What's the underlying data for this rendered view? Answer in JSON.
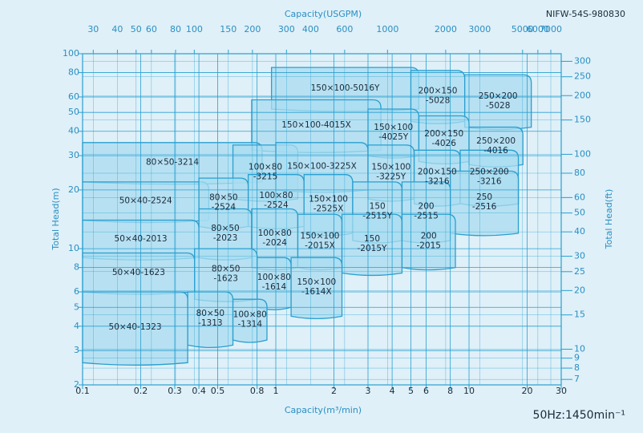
{
  "chart_data": {
    "type": "coverage",
    "title": "NIFW-54S-980830",
    "note": "50Hz:1450min⁻¹",
    "xlabel": "Capacity(m³/min)",
    "x2label": "Capacity(USGPM)",
    "ylabel": "Total Head(m)",
    "y2label": "Total Head(ft)",
    "xscale": "log",
    "yscale": "log",
    "grid": true,
    "color": "#aadcf0",
    "edge_color": "#2a9fd0",
    "xlim": [
      0.1,
      30
    ],
    "ylim": [
      2,
      100
    ],
    "x2lim": [
      26.417,
      7925
    ],
    "y2lim": [
      6.562,
      328.1
    ],
    "xticks": [
      0.1,
      0.2,
      0.3,
      0.4,
      0.5,
      0.8,
      1,
      2,
      3,
      4,
      5,
      6,
      8,
      10,
      20,
      30
    ],
    "x2ticks": [
      30,
      40,
      50,
      60,
      80,
      100,
      150,
      200,
      300,
      400,
      600,
      1000,
      2000,
      3000,
      5000,
      6000,
      7000
    ],
    "yticks": [
      2,
      3,
      4,
      5,
      6,
      8,
      10,
      20,
      30,
      40,
      50,
      60,
      80,
      100
    ],
    "y2ticks": [
      7,
      8,
      9,
      10,
      15,
      20,
      25,
      30,
      40,
      50,
      60,
      80,
      100,
      150,
      200,
      250,
      300
    ],
    "regions": [
      {
        "lines": [
          "150×100-5016Y"
        ],
        "q": [
          0.95,
          5.5
        ],
        "h": [
          52,
          85
        ]
      },
      {
        "lines": [
          "200×150",
          "-5028"
        ],
        "q": [
          5,
          9.5
        ],
        "h": [
          45,
          82
        ]
      },
      {
        "lines": [
          "250×200",
          "-5028"
        ],
        "q": [
          9.5,
          21
        ],
        "h": [
          42,
          78
        ]
      },
      {
        "lines": [
          "150×100-4015X"
        ],
        "q": [
          0.75,
          3.5
        ],
        "h": [
          32,
          58
        ]
      },
      {
        "lines": [
          "150×100",
          "-4025Y"
        ],
        "q": [
          3,
          5.5
        ],
        "h": [
          30,
          52
        ]
      },
      {
        "lines": [
          "200×150",
          "-4026"
        ],
        "q": [
          5.5,
          10
        ],
        "h": [
          28,
          48
        ]
      },
      {
        "lines": [
          "250×200",
          "-4016"
        ],
        "q": [
          10,
          19
        ],
        "h": [
          27,
          42
        ]
      },
      {
        "lines": [
          "80×50-3214"
        ],
        "q": [
          0.1,
          0.85
        ],
        "h": [
          22,
          35
        ]
      },
      {
        "lines": [
          "100×80",
          "-3215"
        ],
        "q": [
          0.6,
          1.3
        ],
        "h": [
          18,
          34
        ]
      },
      {
        "lines": [
          "150×100-3225X"
        ],
        "q": [
          1,
          3
        ],
        "h": [
          20,
          35
        ]
      },
      {
        "lines": [
          "150×100",
          "-3225Y"
        ],
        "q": [
          3,
          5.2
        ],
        "h": [
          18,
          34
        ]
      },
      {
        "lines": [
          "200×150",
          "-3216"
        ],
        "q": [
          5.2,
          9
        ],
        "h": [
          17,
          32
        ]
      },
      {
        "lines": [
          "250×200",
          "-3216"
        ],
        "q": [
          9,
          18
        ],
        "h": [
          17,
          32
        ]
      },
      {
        "lines": [
          "50×40-2524"
        ],
        "q": [
          0.1,
          0.45
        ],
        "h": [
          14,
          22
        ]
      },
      {
        "lines": [
          "80×50",
          "-2524"
        ],
        "q": [
          0.4,
          0.72
        ],
        "h": [
          13,
          23
        ]
      },
      {
        "lines": [
          "100×80",
          "-2524"
        ],
        "q": [
          0.72,
          1.4
        ],
        "h": [
          13,
          24
        ]
      },
      {
        "lines": [
          "150×100",
          "-2525X"
        ],
        "q": [
          1.4,
          2.5
        ],
        "h": [
          12,
          24
        ]
      },
      {
        "lines": [
          "150",
          "-2515Y"
        ],
        "q": [
          2.5,
          4.5
        ],
        "h": [
          11,
          22
        ]
      },
      {
        "lines": [
          "200",
          "-2515"
        ],
        "q": [
          4.5,
          8
        ],
        "h": [
          11,
          22
        ]
      },
      {
        "lines": [
          "250",
          "-2516"
        ],
        "q": [
          8,
          18
        ],
        "h": [
          12,
          25
        ]
      },
      {
        "lines": [
          "50×40-2013"
        ],
        "q": [
          0.1,
          0.4
        ],
        "h": [
          9,
          14
        ]
      },
      {
        "lines": [
          "80×50",
          "-2023"
        ],
        "q": [
          0.4,
          0.75
        ],
        "h": [
          9,
          16
        ]
      },
      {
        "lines": [
          "100×80",
          "-2024"
        ],
        "q": [
          0.75,
          1.3
        ],
        "h": [
          8,
          16
        ]
      },
      {
        "lines": [
          "150×100",
          "-2015X"
        ],
        "q": [
          1.3,
          2.2
        ],
        "h": [
          8,
          15
        ]
      },
      {
        "lines": [
          "150",
          "-2015Y"
        ],
        "q": [
          2.2,
          4.5
        ],
        "h": [
          7.5,
          15
        ]
      },
      {
        "lines": [
          "200",
          "-2015"
        ],
        "q": [
          4.5,
          8.5
        ],
        "h": [
          8,
          15
        ]
      },
      {
        "lines": [
          "50×40-1623"
        ],
        "q": [
          0.1,
          0.38
        ],
        "h": [
          6,
          9.5
        ]
      },
      {
        "lines": [
          "80×50",
          "-1623"
        ],
        "q": [
          0.38,
          0.8
        ],
        "h": [
          5.5,
          10
        ]
      },
      {
        "lines": [
          "100×80",
          "-1614"
        ],
        "q": [
          0.8,
          1.2
        ],
        "h": [
          5,
          9
        ]
      },
      {
        "lines": [
          "150×100",
          "-1614X"
        ],
        "q": [
          1.2,
          2.2
        ],
        "h": [
          4.5,
          9
        ]
      },
      {
        "lines": [
          "50×40-1323"
        ],
        "q": [
          0.1,
          0.35
        ],
        "h": [
          2.6,
          6
        ]
      },
      {
        "lines": [
          "80×50",
          "-1313"
        ],
        "q": [
          0.35,
          0.6
        ],
        "h": [
          3.2,
          6
        ]
      },
      {
        "lines": [
          "100×80",
          "-1314"
        ],
        "q": [
          0.6,
          0.9
        ],
        "h": [
          3.4,
          5.5
        ]
      }
    ]
  }
}
